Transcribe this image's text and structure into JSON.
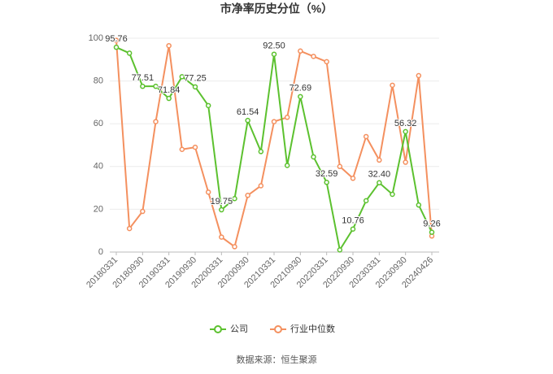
{
  "chart_data": {
    "type": "line",
    "title": "市净率历史分位（%）",
    "categories": [
      "20180331",
      null,
      "20180930",
      null,
      "20190331",
      null,
      "20190930",
      null,
      "20200331",
      null,
      "20200930",
      null,
      "20210331",
      null,
      "20210930",
      null,
      "20220331",
      null,
      "20220930",
      null,
      "20230331",
      null,
      "20230930",
      null,
      "20240426"
    ],
    "series": [
      {
        "name": "公司",
        "color": "#5cc12f",
        "values": [
          95.76,
          93,
          77.51,
          77.5,
          71.84,
          82,
          77.25,
          68.5,
          19.75,
          25,
          61.54,
          47,
          92.5,
          40.5,
          72.69,
          44.5,
          32.59,
          1,
          10.76,
          24,
          32.4,
          27,
          56.32,
          22,
          9.26
        ],
        "value_labels": [
          "95.76",
          null,
          "77.51",
          null,
          "71.84",
          null,
          "77.25",
          null,
          "19.75",
          null,
          "61.54",
          null,
          "92.50",
          null,
          "72.69",
          null,
          "32.59",
          null,
          "10.76",
          null,
          "32.40",
          null,
          "56.32",
          null,
          "9.26"
        ]
      },
      {
        "name": "行业中位数",
        "color": "#f4905f",
        "values": [
          99,
          11,
          19,
          61,
          96.5,
          48,
          49,
          28,
          7,
          2.5,
          26.5,
          31,
          61,
          63,
          94,
          91.5,
          89,
          40,
          34.5,
          54,
          43,
          78,
          42,
          82.5,
          7.5
        ]
      }
    ],
    "ylim": [
      0,
      100
    ],
    "yticks": [
      0,
      20,
      40,
      60,
      80,
      100
    ],
    "grid": true,
    "source": "数据来源：恒生聚源"
  }
}
